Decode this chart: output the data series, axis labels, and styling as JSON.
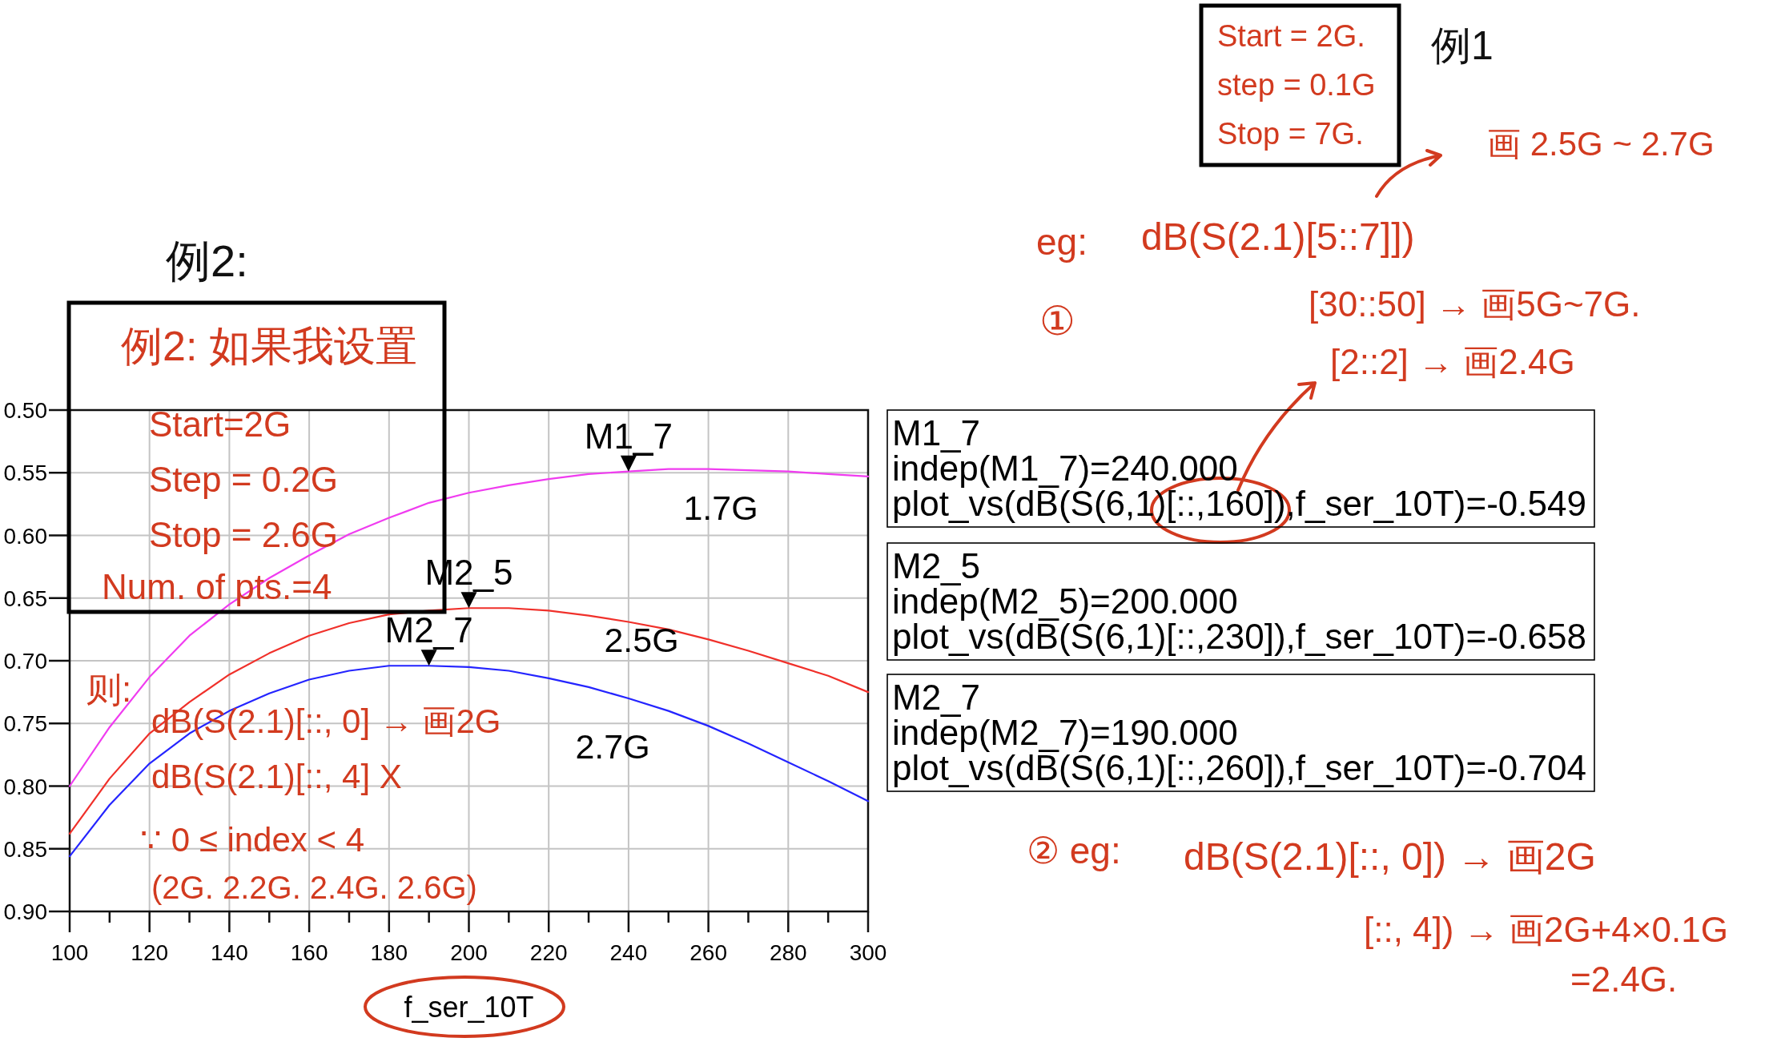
{
  "chart_data": {
    "type": "line",
    "xlabel": "f_ser_10T",
    "x": [
      100,
      110,
      120,
      130,
      140,
      150,
      160,
      170,
      180,
      190,
      200,
      210,
      220,
      230,
      240,
      250,
      260,
      270,
      280,
      290,
      300
    ],
    "series": [
      {
        "name": "1.7G",
        "color": "#f03cf0",
        "values": [
          -0.8,
          -0.753,
          -0.713,
          -0.68,
          -0.655,
          -0.634,
          -0.616,
          -0.599,
          -0.586,
          -0.574,
          -0.566,
          -0.56,
          -0.555,
          -0.551,
          -0.549,
          -0.547,
          -0.547,
          -0.548,
          -0.549,
          -0.551,
          -0.553
        ]
      },
      {
        "name": "2.5G",
        "color": "#f0302a",
        "values": [
          -0.838,
          -0.794,
          -0.758,
          -0.733,
          -0.711,
          -0.694,
          -0.68,
          -0.67,
          -0.663,
          -0.66,
          -0.658,
          -0.658,
          -0.66,
          -0.664,
          -0.669,
          -0.675,
          -0.683,
          -0.692,
          -0.702,
          -0.712,
          -0.725
        ]
      },
      {
        "name": "2.7G",
        "color": "#2424ff",
        "values": [
          -0.856,
          -0.815,
          -0.782,
          -0.758,
          -0.74,
          -0.726,
          -0.715,
          -0.708,
          -0.704,
          -0.704,
          -0.705,
          -0.708,
          -0.714,
          -0.721,
          -0.73,
          -0.74,
          -0.752,
          -0.766,
          -0.781,
          -0.796,
          -0.812
        ]
      }
    ],
    "xlim": [
      100,
      300
    ],
    "xticks": [
      100,
      {
        "value": 110,
        "label": null
      },
      120,
      {
        "value": 130,
        "label": null
      },
      140,
      {
        "value": 150,
        "label": null
      },
      160,
      {
        "value": 170,
        "label": null
      },
      180,
      {
        "value": 190,
        "label": null
      },
      200,
      {
        "value": 210,
        "label": null
      },
      220,
      {
        "value": 230,
        "label": null
      },
      240,
      {
        "value": 250,
        "label": null
      },
      260,
      {
        "value": 270,
        "label": null
      },
      280,
      {
        "value": 290,
        "label": null
      },
      300
    ],
    "ylim": [
      -0.9,
      -0.5
    ],
    "yticks": [
      {
        "value": -0.9,
        "label": "0.90"
      },
      {
        "value": -0.85,
        "label": "0.85"
      },
      {
        "value": -0.8,
        "label": "0.80"
      },
      {
        "value": -0.75,
        "label": "0.75"
      },
      {
        "value": -0.7,
        "label": "0.70"
      },
      {
        "value": -0.65,
        "label": "0.65"
      },
      {
        "value": -0.6,
        "label": "0.60"
      },
      {
        "value": -0.55,
        "label": "0.55"
      },
      {
        "value": -0.5,
        "label": "0.50"
      }
    ],
    "grid": true,
    "annotations": [
      {
        "text": "M1_7",
        "x": 240,
        "y": -0.549
      },
      {
        "text": "M2_5",
        "x": 200,
        "y": -0.658
      },
      {
        "text": "M2_7",
        "x": 190,
        "y": -0.704
      },
      "M1_7\nindep(M1_7)=240.000\nplot_vs(dB(S(6,1)[::,160]),f_ser_10T)=-0.549",
      "M2_5\nindep(M2_5)=200.000\nplot_vs(dB(S(6,1)[::,230]),f_ser_10T)=-0.658",
      "M2_7\nindep(M2_7)=190.000\nplot_vs(dB(S(6,1)[::,260]),f_ser_10T)=-0.704",
      "例1",
      "Start = 2G.\nstep = 0.1G\nStop = 7G.",
      "eg:",
      "dB(S(2.1)[5::7]])",
      "画 2.5G ~ 2.7G",
      "①",
      "[30::50] → 画5G~7G.",
      "[2::2] → 画2.4G",
      "例2:",
      "例2: 如果我设置",
      "Start=2G",
      "Step = 0.2G",
      "Stop = 2.6G",
      "Num. of pts.=4",
      "则:",
      "dB(S(2.1)[::, 0] → 画2G",
      "dB(S(2.1)[::, 4] X",
      "∵ 0 ≤ index < 4",
      "(2G. 2.2G. 2.4G. 2.6G)",
      "② eg:",
      "dB(S(2.1)[::, 0]) → 画2G",
      "[::, 4]) → 画2G+4×0.1G",
      "=2.4G."
    ]
  }
}
